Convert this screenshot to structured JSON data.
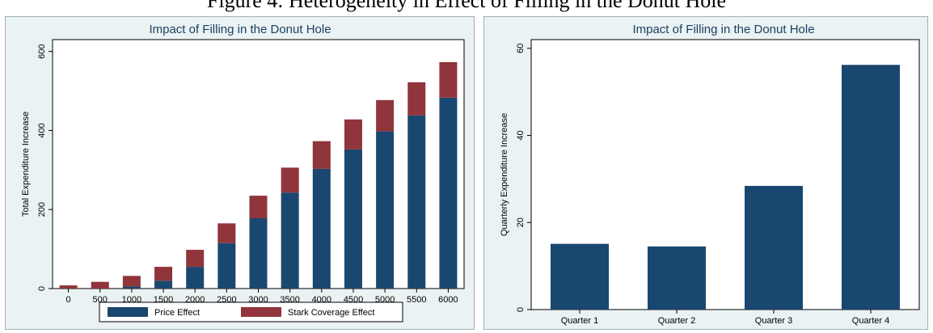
{
  "figure_title": "Figure 4: Heterogeneity in Effect of Filling in the Donut Hole",
  "colors": {
    "price": "#1a476f",
    "stark": "#90353b",
    "panel_bg": "#eaf2f3",
    "plot_bg": "#ffffff"
  },
  "chart_data": [
    {
      "type": "bar",
      "stacked": true,
      "title": "Impact of Filling in the Donut Hole",
      "xlabel": "",
      "ylabel": "Total Expenditure Increase",
      "ylim": [
        0,
        630
      ],
      "yticks": [
        0,
        200,
        400,
        600
      ],
      "categories": [
        "0",
        "500",
        "1000",
        "1500",
        "2000",
        "2500",
        "3000",
        "3500",
        "4000",
        "4500",
        "5000",
        "5500",
        "6000"
      ],
      "series": [
        {
          "name": "Price Effect",
          "color": "#1a476f",
          "values": [
            0,
            0,
            5,
            20,
            55,
            115,
            178,
            243,
            303,
            352,
            398,
            438,
            483
          ]
        },
        {
          "name": "Stark Coverage Effect",
          "color": "#90353b",
          "values": [
            8,
            17,
            27,
            35,
            43,
            50,
            57,
            63,
            70,
            76,
            79,
            84,
            90
          ]
        }
      ],
      "legend": "bottom"
    },
    {
      "type": "bar",
      "title": "Impact of Filling in the Donut Hole",
      "xlabel": "",
      "ylabel": "Quarterly Expenditure Increase",
      "ylim": [
        0,
        62
      ],
      "yticks": [
        0,
        20,
        40,
        60
      ],
      "categories": [
        "Quarter 1",
        "Quarter 2",
        "Quarter 3",
        "Quarter 4"
      ],
      "values": [
        15.1,
        14.5,
        28.4,
        56.2
      ],
      "color": "#1a476f"
    }
  ]
}
